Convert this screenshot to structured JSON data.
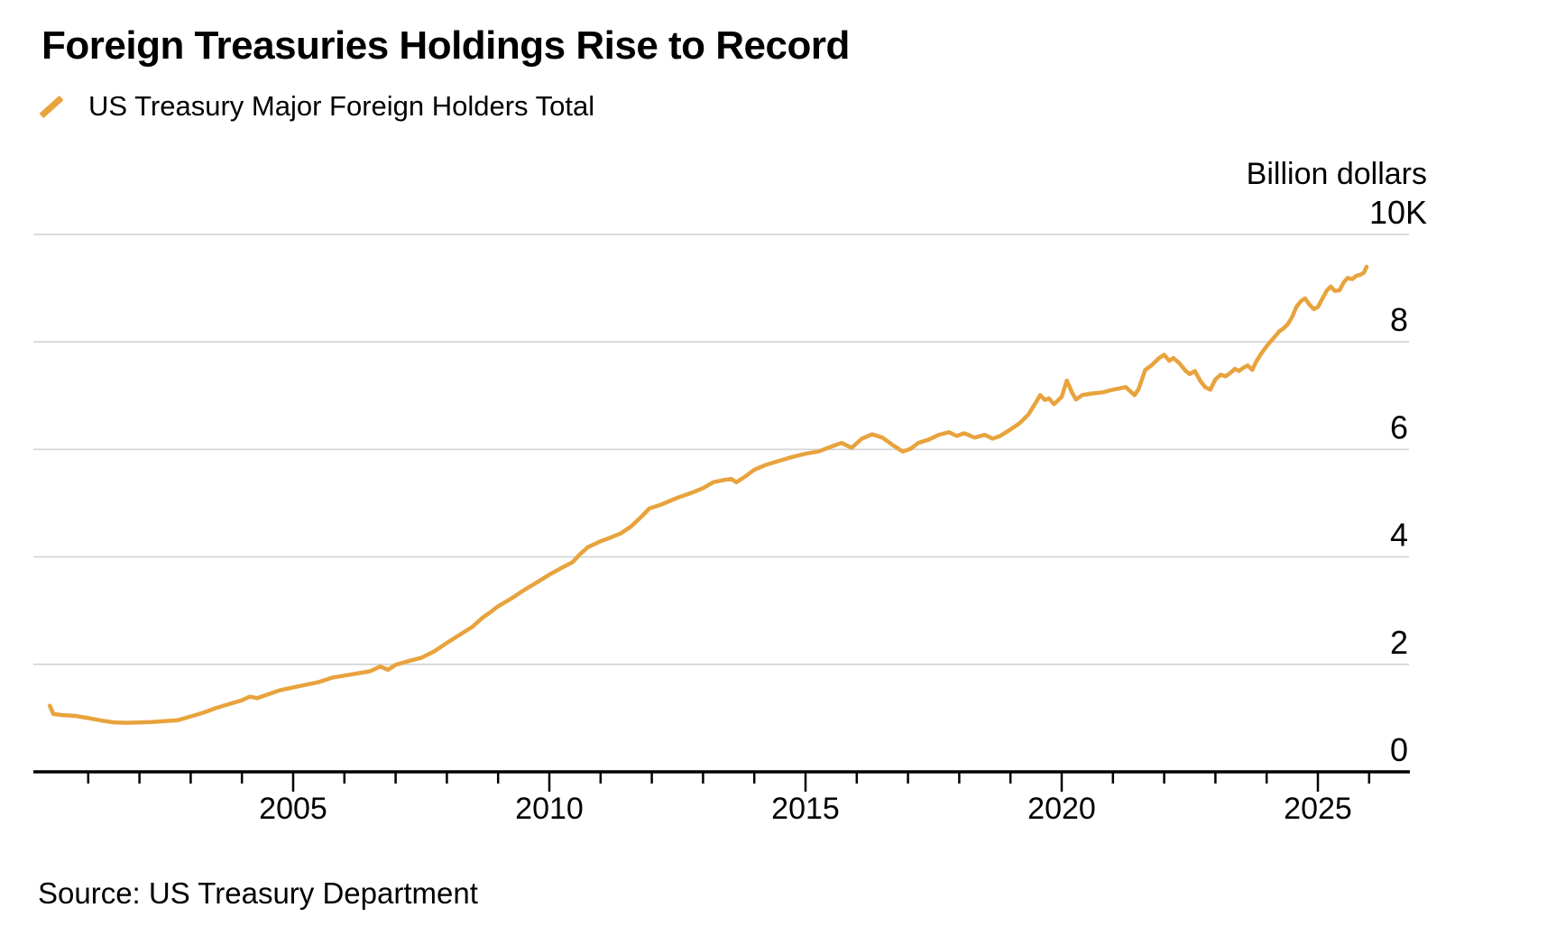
{
  "header": {
    "title": "Foreign Treasuries Holdings Rise to Record"
  },
  "legend": {
    "label": "US Treasury Major Foreign Holders Total",
    "swatch_color": "#E8A33D"
  },
  "source": {
    "text": "Source: US Treasury Department"
  },
  "chart_data": {
    "type": "line",
    "title": "Foreign Treasuries Holdings Rise to Record",
    "series_name": "US Treasury Major Foreign Holders Total",
    "ylabel": "Billion dollars",
    "xlabel": "",
    "grid": "horizontal",
    "legend_position": "top-left",
    "line_color": "#E8A33D",
    "grid_color": "#D6D6D6",
    "axis_color": "#000000",
    "text_color": "#000000",
    "ylim": [
      0,
      10000
    ],
    "xlim": [
      1999.9,
      2026.9
    ],
    "y_ticks": [
      {
        "value": 0,
        "label": "0"
      },
      {
        "value": 2000,
        "label": "2"
      },
      {
        "value": 4000,
        "label": "4"
      },
      {
        "value": 6000,
        "label": "6"
      },
      {
        "value": 8000,
        "label": "8"
      },
      {
        "value": 10000,
        "label": "10K"
      }
    ],
    "x_ticks_labeled": [
      2005,
      2010,
      2015,
      2020,
      2025
    ],
    "x_ticks_minor_start": 2001,
    "x_ticks_minor_end": 2026,
    "x": [
      2000.25,
      2000.32,
      2000.5,
      2000.75,
      2001.0,
      2001.25,
      2001.5,
      2001.75,
      2002.0,
      2002.25,
      2002.5,
      2002.75,
      2003.0,
      2003.25,
      2003.5,
      2003.75,
      2004.0,
      2004.15,
      2004.3,
      2004.5,
      2004.75,
      2005.0,
      2005.25,
      2005.5,
      2005.75,
      2006.0,
      2006.25,
      2006.5,
      2006.7,
      2006.85,
      2007.0,
      2007.25,
      2007.5,
      2007.75,
      2008.0,
      2008.25,
      2008.5,
      2008.7,
      2008.85,
      2009.0,
      2009.25,
      2009.5,
      2009.75,
      2010.0,
      2010.25,
      2010.45,
      2010.6,
      2010.75,
      2011.0,
      2011.2,
      2011.4,
      2011.6,
      2011.8,
      2011.95,
      2012.2,
      2012.5,
      2012.8,
      2013.0,
      2013.2,
      2013.4,
      2013.55,
      2013.65,
      2013.8,
      2014.0,
      2014.25,
      2014.5,
      2014.75,
      2015.0,
      2015.25,
      2015.5,
      2015.7,
      2015.9,
      2016.1,
      2016.3,
      2016.5,
      2016.7,
      2016.9,
      2017.05,
      2017.2,
      2017.4,
      2017.6,
      2017.8,
      2017.95,
      2018.1,
      2018.3,
      2018.5,
      2018.65,
      2018.8,
      2019.0,
      2019.17,
      2019.35,
      2019.5,
      2019.58,
      2019.67,
      2019.75,
      2019.85,
      2020.0,
      2020.1,
      2020.2,
      2020.28,
      2020.4,
      2020.6,
      2020.8,
      2020.95,
      2021.1,
      2021.25,
      2021.42,
      2021.5,
      2021.63,
      2021.75,
      2021.9,
      2022.0,
      2022.1,
      2022.18,
      2022.3,
      2022.42,
      2022.5,
      2022.6,
      2022.7,
      2022.8,
      2022.9,
      2023.0,
      2023.1,
      2023.2,
      2023.3,
      2023.38,
      2023.46,
      2023.55,
      2023.63,
      2023.72,
      2023.8,
      2023.9,
      2024.0,
      2024.08,
      2024.17,
      2024.25,
      2024.33,
      2024.42,
      2024.5,
      2024.58,
      2024.67,
      2024.75,
      2024.83,
      2024.92,
      2025.0,
      2025.08,
      2025.17,
      2025.25,
      2025.33,
      2025.42,
      2025.5,
      2025.58,
      2025.67,
      2025.75,
      2025.83,
      2025.9,
      2025.95
    ],
    "values": [
      1230,
      1075,
      1055,
      1040,
      1000,
      955,
      920,
      912,
      918,
      928,
      945,
      962,
      1030,
      1100,
      1190,
      1260,
      1330,
      1400,
      1370,
      1440,
      1520,
      1570,
      1620,
      1670,
      1750,
      1790,
      1830,
      1870,
      1960,
      1900,
      1990,
      2060,
      2120,
      2240,
      2400,
      2550,
      2700,
      2870,
      2970,
      3080,
      3220,
      3380,
      3520,
      3670,
      3800,
      3900,
      4050,
      4180,
      4290,
      4360,
      4440,
      4570,
      4750,
      4900,
      4980,
      5100,
      5200,
      5280,
      5390,
      5430,
      5450,
      5390,
      5480,
      5620,
      5720,
      5790,
      5860,
      5920,
      5960,
      6050,
      6120,
      6030,
      6200,
      6280,
      6220,
      6080,
      5960,
      6010,
      6120,
      6180,
      6270,
      6320,
      6250,
      6300,
      6220,
      6270,
      6200,
      6250,
      6370,
      6480,
      6650,
      6880,
      7010,
      6920,
      6950,
      6840,
      6980,
      7280,
      7060,
      6930,
      7010,
      7040,
      7060,
      7100,
      7130,
      7160,
      7010,
      7120,
      7480,
      7560,
      7700,
      7760,
      7650,
      7700,
      7600,
      7460,
      7400,
      7460,
      7280,
      7160,
      7110,
      7300,
      7390,
      7360,
      7430,
      7500,
      7460,
      7520,
      7560,
      7480,
      7640,
      7790,
      7920,
      8010,
      8110,
      8200,
      8250,
      8340,
      8470,
      8650,
      8760,
      8810,
      8700,
      8610,
      8650,
      8790,
      8950,
      9030,
      8950,
      8960,
      9100,
      9190,
      9170,
      9230,
      9250,
      9290,
      9400
    ]
  }
}
